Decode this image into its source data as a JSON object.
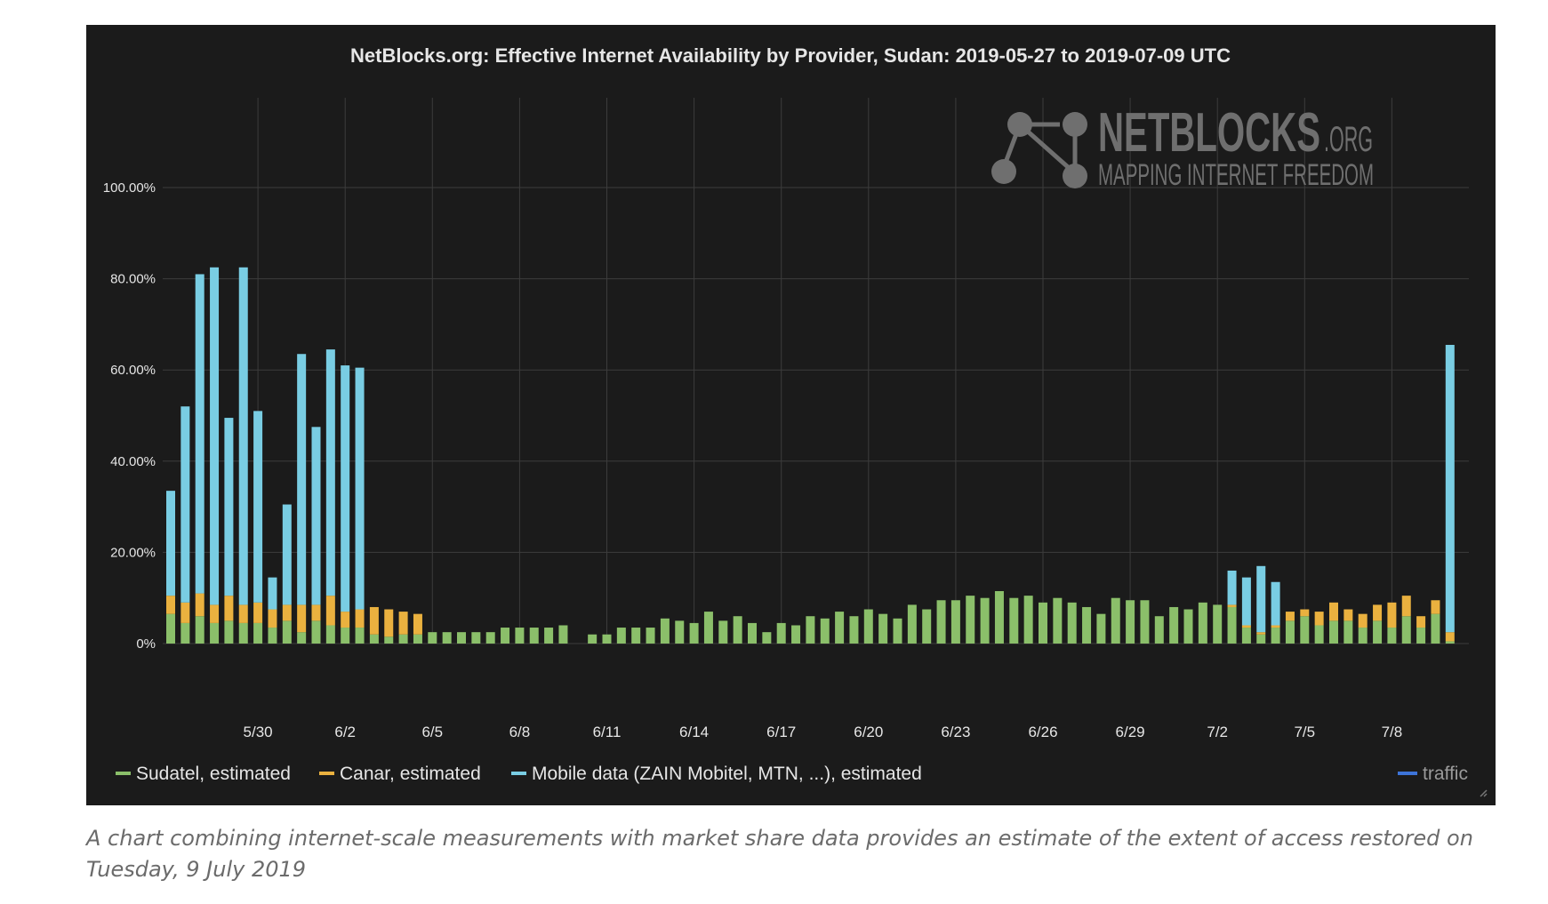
{
  "chart_data": {
    "type": "bar",
    "stacked": true,
    "title": "NetBlocks.org: Effective Internet Availability by Provider, Sudan: 2019-05-27 to 2019-07-09 UTC",
    "xlabel": "",
    "ylabel": "",
    "ylim": [
      0,
      100
    ],
    "yticks": [
      "0%",
      "20.00%",
      "40.00%",
      "60.00%",
      "80.00%",
      "100.00%"
    ],
    "ytick_values": [
      0,
      20,
      40,
      60,
      80,
      100
    ],
    "x_tick_labels": [
      "5/30",
      "6/2",
      "6/5",
      "6/8",
      "6/11",
      "6/14",
      "6/17",
      "6/20",
      "6/23",
      "6/26",
      "6/29",
      "7/2",
      "7/5",
      "7/8"
    ],
    "x_tick_index": [
      6,
      12,
      18,
      24,
      30,
      36,
      42,
      48,
      54,
      60,
      66,
      72,
      78,
      84
    ],
    "grid": true,
    "legend_position": "bottom",
    "series": [
      {
        "name": "Sudatel, estimated",
        "color": "#8bbf6a",
        "values": [
          6.5,
          4.5,
          6,
          4.5,
          5,
          4.5,
          4.5,
          3.5,
          5,
          2.5,
          5,
          4,
          3.5,
          3.5,
          2,
          1.5,
          2,
          2,
          2.5,
          2.5,
          2.5,
          2.5,
          2.5,
          3.5,
          3.5,
          3.5,
          3.5,
          4,
          0,
          2,
          2,
          3.5,
          3.5,
          3.5,
          5.5,
          5,
          4.5,
          7,
          5,
          6,
          4.5,
          2.5,
          4.5,
          4,
          6,
          5.5,
          7,
          6,
          7.5,
          6.5,
          5.5,
          8.5,
          7.5,
          9.5,
          9.5,
          10.5,
          10,
          11.5,
          10,
          10.5,
          9,
          10,
          9,
          8,
          6.5,
          10,
          9.5,
          9.5,
          6,
          8,
          7.5,
          9,
          8.5,
          8,
          3.5,
          2,
          3.5,
          5,
          6,
          4,
          5,
          5,
          3.5,
          5,
          3.5,
          6,
          3.5,
          6.5,
          0.5
        ]
      },
      {
        "name": "Canar, estimated",
        "color": "#eab13f",
        "values": [
          4,
          4.5,
          5,
          4,
          5.5,
          4,
          4.5,
          4,
          3.5,
          6,
          3.5,
          6.5,
          3.5,
          4,
          6,
          6,
          5,
          4.5,
          0,
          0,
          0,
          0,
          0,
          0,
          0,
          0,
          0,
          0,
          0,
          0,
          0,
          0,
          0,
          0,
          0,
          0,
          0,
          0,
          0,
          0,
          0,
          0,
          0,
          0,
          0,
          0,
          0,
          0,
          0,
          0,
          0,
          0,
          0,
          0,
          0,
          0,
          0,
          0,
          0,
          0,
          0,
          0,
          0,
          0,
          0,
          0,
          0,
          0,
          0,
          0,
          0,
          0,
          0,
          0.5,
          0.5,
          0.5,
          0.5,
          2,
          1.5,
          3,
          4,
          2.5,
          3,
          3.5,
          5.5,
          4.5,
          2.5,
          3,
          2
        ]
      },
      {
        "name": "Mobile data (ZAIN Mobitel, MTN, ...), estimated",
        "color": "#79cde3",
        "values": [
          23,
          43,
          70,
          74,
          39,
          74,
          42,
          7,
          22,
          55,
          39,
          54,
          54,
          53,
          0,
          0,
          0,
          0,
          0,
          0,
          0,
          0,
          0,
          0,
          0,
          0,
          0,
          0,
          0,
          0,
          0,
          0,
          0,
          0,
          0,
          0,
          0,
          0,
          0,
          0,
          0,
          0,
          0,
          0,
          0,
          0,
          0,
          0,
          0,
          0,
          0,
          0,
          0,
          0,
          0,
          0,
          0,
          0,
          0,
          0,
          0,
          0,
          0,
          0,
          0,
          0,
          0,
          0,
          0,
          0,
          0,
          0,
          0,
          7.5,
          10.5,
          14.5,
          9.5,
          0,
          0,
          0,
          0,
          0,
          0,
          0,
          0,
          0,
          0,
          0,
          63
        ]
      },
      {
        "name": "traffic",
        "color": "#3d74d9",
        "values": []
      }
    ]
  },
  "watermark": {
    "brand_main": "NETBLOCKS",
    "brand_suffix": ".ORG",
    "tagline": "MAPPING INTERNET FREEDOM"
  },
  "caption": "A chart combining internet-scale measurements with market share data provides an estimate of the extent of access restored on Tuesday, 9 July 2019",
  "colors": {
    "background": "#1b1b1b",
    "grid": "#3c3c3c",
    "text": "#e6e6e6",
    "watermark": "#6f6f6f"
  }
}
